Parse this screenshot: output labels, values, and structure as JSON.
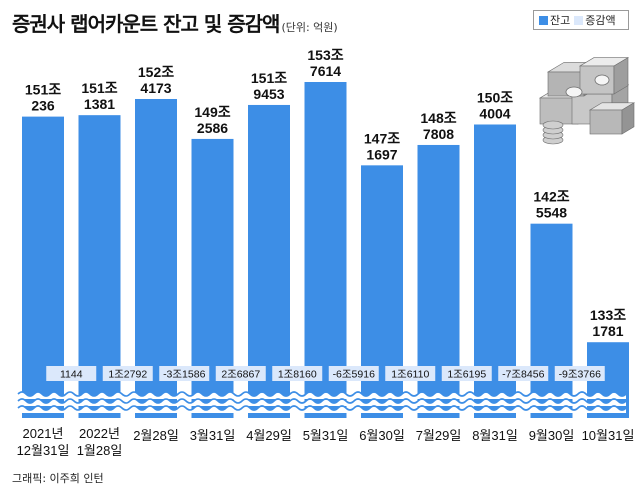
{
  "title": "증권사 랩어카운트 잔고 및 증감액",
  "unit_note": "(단위: 억원)",
  "credit": "그래픽: 이주희 인턴",
  "colors": {
    "balance": "#3d8ee6",
    "change": "#dbe8fb",
    "wave": "#3d8ee6",
    "text": "#111111"
  },
  "legend": [
    {
      "name": "잔고",
      "color": "#3d8ee6"
    },
    {
      "name": "증감액",
      "color": "#dbe8fb"
    }
  ],
  "chart_data": {
    "type": "bar",
    "title": "증권사 랩어카운트 잔고 및 증감액",
    "units": "억원",
    "categories": [
      [
        "2021년",
        "12월31일"
      ],
      [
        "2022년",
        "1월28일"
      ],
      [
        "2월28일"
      ],
      [
        "3월31일"
      ],
      [
        "4월29일"
      ],
      [
        "5월31일"
      ],
      [
        "6월30일"
      ],
      [
        "7월29일"
      ],
      [
        "8월31일"
      ],
      [
        "9월30일"
      ],
      [
        "10월31일"
      ]
    ],
    "series": [
      {
        "name": "잔고",
        "values": [
          1510236,
          1511381,
          1524173,
          1492586,
          1519453,
          1537614,
          1471697,
          1487808,
          1504004,
          1425548,
          1331781
        ],
        "labels": [
          [
            "151조",
            "236"
          ],
          [
            "151조",
            "1381"
          ],
          [
            "152조",
            "4173"
          ],
          [
            "149조",
            "2586"
          ],
          [
            "151조",
            "9453"
          ],
          [
            "153조",
            "7614"
          ],
          [
            "147조",
            "1697"
          ],
          [
            "148조",
            "7808"
          ],
          [
            "150조",
            "4004"
          ],
          [
            "142조",
            "5548"
          ],
          [
            "133조",
            "1781"
          ]
        ]
      },
      {
        "name": "증감액",
        "values": [
          null,
          1144,
          12792,
          -31586,
          26867,
          18160,
          -65916,
          16110,
          16195,
          -78456,
          -93766
        ],
        "labels": [
          null,
          "1144",
          "1조2792",
          "-3조1586",
          "2조6867",
          "1조8160",
          "-6조5916",
          "1조6110",
          "1조6195",
          "-7조8456",
          "-9조3766"
        ]
      }
    ],
    "axis_break": true,
    "grid": false,
    "legend_position": "top-right"
  }
}
